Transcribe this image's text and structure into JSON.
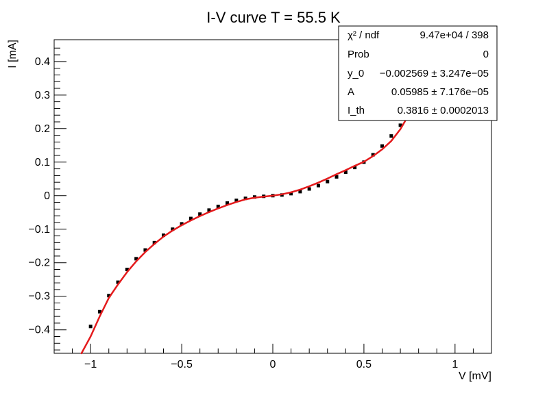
{
  "chart_data": {
    "type": "scatter",
    "title": "I-V curve T = 55.5 K",
    "xlabel": "V [mV]",
    "ylabel": "I [mA]",
    "xlim": [
      -1.2,
      1.2
    ],
    "ylim": [
      -0.47,
      0.465
    ],
    "x_ticks": [
      -1,
      -0.5,
      0,
      0.5,
      1
    ],
    "x_tick_labels": [
      "−1",
      "−0.5",
      "0",
      "0.5",
      "1"
    ],
    "y_ticks": [
      -0.4,
      -0.3,
      -0.2,
      -0.1,
      0,
      0.1,
      0.2,
      0.3,
      0.4
    ],
    "y_tick_labels": [
      "−0.4",
      "−0.3",
      "−0.2",
      "−0.1",
      "0",
      "0.1",
      "0.2",
      "0.3",
      "0.4"
    ],
    "grid": false,
    "series": [
      {
        "kind": "points",
        "color": "#000000",
        "x": [
          -1.0,
          -0.95,
          -0.9,
          -0.85,
          -0.8,
          -0.75,
          -0.7,
          -0.65,
          -0.6,
          -0.55,
          -0.5,
          -0.45,
          -0.4,
          -0.35,
          -0.3,
          -0.25,
          -0.2,
          -0.15,
          -0.1,
          -0.05,
          0.0,
          0.05,
          0.1,
          0.15,
          0.2,
          0.25,
          0.3,
          0.35,
          0.4,
          0.45,
          0.5,
          0.55,
          0.6,
          0.65,
          0.7,
          0.75
        ],
        "y": [
          -0.39,
          -0.346,
          -0.298,
          -0.258,
          -0.22,
          -0.188,
          -0.162,
          -0.14,
          -0.118,
          -0.1,
          -0.084,
          -0.068,
          -0.055,
          -0.043,
          -0.032,
          -0.022,
          -0.014,
          -0.008,
          -0.004,
          -0.002,
          0.0,
          0.002,
          0.006,
          0.012,
          0.02,
          0.03,
          0.042,
          0.056,
          0.07,
          0.084,
          0.1,
          0.122,
          0.148,
          0.178,
          0.21,
          0.245
        ]
      },
      {
        "kind": "fit",
        "color": "#e41a1c",
        "x": [
          -1.05,
          -1.0,
          -0.95,
          -0.9,
          -0.85,
          -0.8,
          -0.75,
          -0.7,
          -0.65,
          -0.6,
          -0.55,
          -0.5,
          -0.45,
          -0.4,
          -0.35,
          -0.3,
          -0.25,
          -0.2,
          -0.15,
          -0.1,
          -0.05,
          0.0,
          0.05,
          0.1,
          0.15,
          0.2,
          0.25,
          0.3,
          0.35,
          0.4,
          0.45,
          0.5,
          0.55,
          0.6,
          0.65,
          0.7,
          0.75
        ],
        "y": [
          -0.47,
          -0.42,
          -0.36,
          -0.305,
          -0.265,
          -0.228,
          -0.196,
          -0.168,
          -0.144,
          -0.122,
          -0.104,
          -0.088,
          -0.074,
          -0.061,
          -0.049,
          -0.038,
          -0.028,
          -0.019,
          -0.011,
          -0.006,
          -0.003,
          0.0,
          0.004,
          0.01,
          0.018,
          0.028,
          0.039,
          0.051,
          0.064,
          0.076,
          0.089,
          0.101,
          0.118,
          0.138,
          0.163,
          0.198,
          0.245
        ]
      }
    ],
    "stats_box": {
      "rows": [
        {
          "label": "χ² / ndf",
          "value": "9.47e+04 / 398"
        },
        {
          "label": "Prob",
          "value": "0"
        },
        {
          "label": "y_0",
          "value": "−0.002569 ± 3.247e−05"
        },
        {
          "label": "A",
          "value": "0.05985 ± 7.176e−05"
        },
        {
          "label": "I_th",
          "value": "0.3816 ± 0.0002013"
        }
      ]
    }
  }
}
